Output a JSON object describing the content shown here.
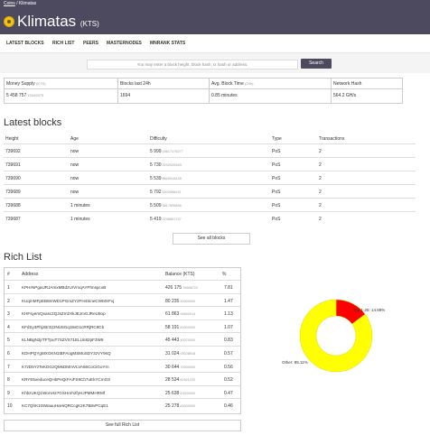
{
  "breadcrumb": {
    "coins": "Coins",
    "separator": "/",
    "current": "Klimatas"
  },
  "header": {
    "title": "Klimatas",
    "ticker": "(KTS)"
  },
  "nav": [
    "LATEST BLOCKS",
    "RICH LIST",
    "PEERS",
    "MASTERNODES",
    "MNRANK STATS"
  ],
  "search": {
    "placeholder": "You may enter a block height, block hash, tx hash or address.",
    "button": "Search"
  },
  "stats": [
    {
      "label": "Money Supply",
      "unit": "(KTS)",
      "value": "5 458 757",
      "value_small": ".70049375"
    },
    {
      "label": "Blocks last 24h",
      "unit": "",
      "value": "1694",
      "value_small": ""
    },
    {
      "label": "Avg. Block Time",
      "unit": "(24h)",
      "value": "0.85 minutes",
      "value_small": ""
    },
    {
      "label": "Network Hash",
      "unit": "",
      "value": "564.2 GH/s",
      "value_small": ""
    }
  ],
  "latest_blocks": {
    "title": "Latest blocks",
    "columns": [
      "Height",
      "Age",
      "Difficulty",
      "Type",
      "Transactions"
    ],
    "rows": [
      {
        "height": "739692",
        "age": "now",
        "diff": "5 999",
        "diff_small": ".18617176277",
        "type": "PoS",
        "tx": "2"
      },
      {
        "height": "739691",
        "age": "now",
        "diff": "5 730",
        "diff_small": ".0202925343",
        "type": "PoS",
        "tx": "2"
      },
      {
        "height": "739690",
        "age": "now",
        "diff": "5 539",
        "diff_small": ".8609918428",
        "type": "PoS",
        "tx": "2"
      },
      {
        "height": "739689",
        "age": "now",
        "diff": "5 792",
        "diff_small": ".1100996212",
        "type": "PoS",
        "tx": "2"
      },
      {
        "height": "739688",
        "age": "1 minutes",
        "diff": "5 509",
        "diff_small": ".3817698836",
        "type": "PoS",
        "tx": "2"
      },
      {
        "height": "739687",
        "age": "1 minutes",
        "diff": "5 419",
        "diff_small": ".0746801737",
        "type": "PoS",
        "tx": "2"
      }
    ],
    "see_all": "See all blocks"
  },
  "rich_list": {
    "title": "Rich List",
    "columns": [
      "#",
      "Address",
      "Balance (KTS)",
      "%"
    ],
    "rows": [
      {
        "rank": "1",
        "address": "KPHrNPgaURJAmxMBdzUrVmqAYPhnspcoB",
        "bal": "426 175",
        "bal_small": ".76588722",
        "pct": "7.81"
      },
      {
        "rank": "2",
        "address": "KUqmMFpEB8mWD1PGmZY2FH4SineCWMXFvj",
        "bal": "80 235",
        "bal_small": ".50000000",
        "pct": "1.47"
      },
      {
        "rank": "3",
        "address": "KHFsyemQxasc2QJsZm2XkJEJmGJReU8op",
        "bal": "61 863",
        "bal_small": ".94840014",
        "pct": "1.13"
      },
      {
        "rank": "4",
        "address": "KFdSy3PhjzBr322NU5Gq19xD1cRRjRC8Cb",
        "bal": "58 191",
        "bal_small": ".60000000",
        "pct": "1.07"
      },
      {
        "rank": "5",
        "address": "KLNBgN2jrTFTpuT7SZVS71ELUn82pF3W9",
        "bal": "45 443",
        "bal_small": ".40070000",
        "pct": "0.83"
      },
      {
        "rank": "6",
        "address": "KDHPQYgMXGKN1tBFAogMSMuSDY3zVY9sQ",
        "bal": "31 024",
        "bal_small": ".09028916",
        "pct": "0.57"
      },
      {
        "rank": "7",
        "address": "K7zD5YzTeKDGzQMsDMmVLVA56CoCiGoYrn",
        "bal": "30 644",
        "bal_small": ".70000000",
        "pct": "0.56"
      },
      {
        "rank": "8",
        "address": "KRYE5xeduceQHbPeQrFAiFS9Ch7uEkYCmGS",
        "bal": "28 534",
        "bal_small": ".82521220",
        "pct": "0.52"
      },
      {
        "rank": "9",
        "address": "KhbzUKQ1WoAH27GSHrnh2fyHJPMMHRMf",
        "bal": "25 638",
        "bal_small": ".43200000",
        "pct": "0.47"
      },
      {
        "rank": "10",
        "address": "KC7QhK1tSWauuHaHiQRCcgK2K7B8vPCqE1",
        "bal": "25 278",
        "bal_small": ".63000000",
        "pct": "0.46"
      }
    ],
    "see_full": "See full Rich List"
  },
  "chart_data": {
    "type": "pie",
    "categories": [
      "Top 1-25",
      "Other"
    ],
    "values": [
      14.89,
      85.11
    ],
    "labels": [
      "Top 1-25: 14.89%",
      "Other: 85.11%"
    ],
    "colors": {
      "top": "#ff0000",
      "other": "#ffff00"
    }
  },
  "colors": {
    "header": "#4d4a5f",
    "search_button": "#4d4a5f"
  }
}
